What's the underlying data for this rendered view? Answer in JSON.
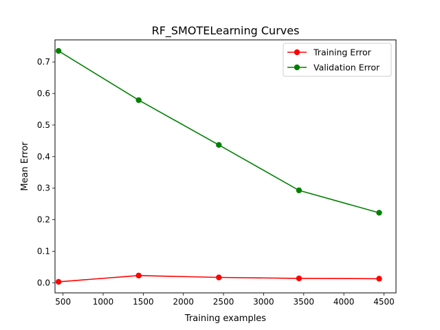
{
  "chart_data": {
    "type": "line",
    "title": "RF_SMOTELearning Curves",
    "xlabel": "Training examples",
    "ylabel": "Mean Error",
    "xlim": [
      400,
      4650
    ],
    "ylim": [
      -0.032,
      0.77
    ],
    "xticks": [
      500,
      1000,
      1500,
      2000,
      2500,
      3000,
      3500,
      4000,
      4500
    ],
    "xtick_labels": [
      "500",
      "1000",
      "1500",
      "2000",
      "2500",
      "3000",
      "3500",
      "4000",
      "4500"
    ],
    "yticks": [
      0.0,
      0.1,
      0.2,
      0.3,
      0.4,
      0.5,
      0.6,
      0.7
    ],
    "ytick_labels": [
      "0.0",
      "0.1",
      "0.2",
      "0.3",
      "0.4",
      "0.5",
      "0.6",
      "0.7"
    ],
    "x": [
      444,
      1443,
      2442,
      3441,
      4440
    ],
    "series": [
      {
        "name": "Training Error",
        "color": "#ff0000",
        "values": [
          0.003,
          0.023,
          0.017,
          0.014,
          0.013
        ]
      },
      {
        "name": "Validation Error",
        "color": "#008000",
        "values": [
          0.735,
          0.579,
          0.437,
          0.293,
          0.222
        ]
      }
    ],
    "legend_position": "top-right",
    "grid": false
  }
}
